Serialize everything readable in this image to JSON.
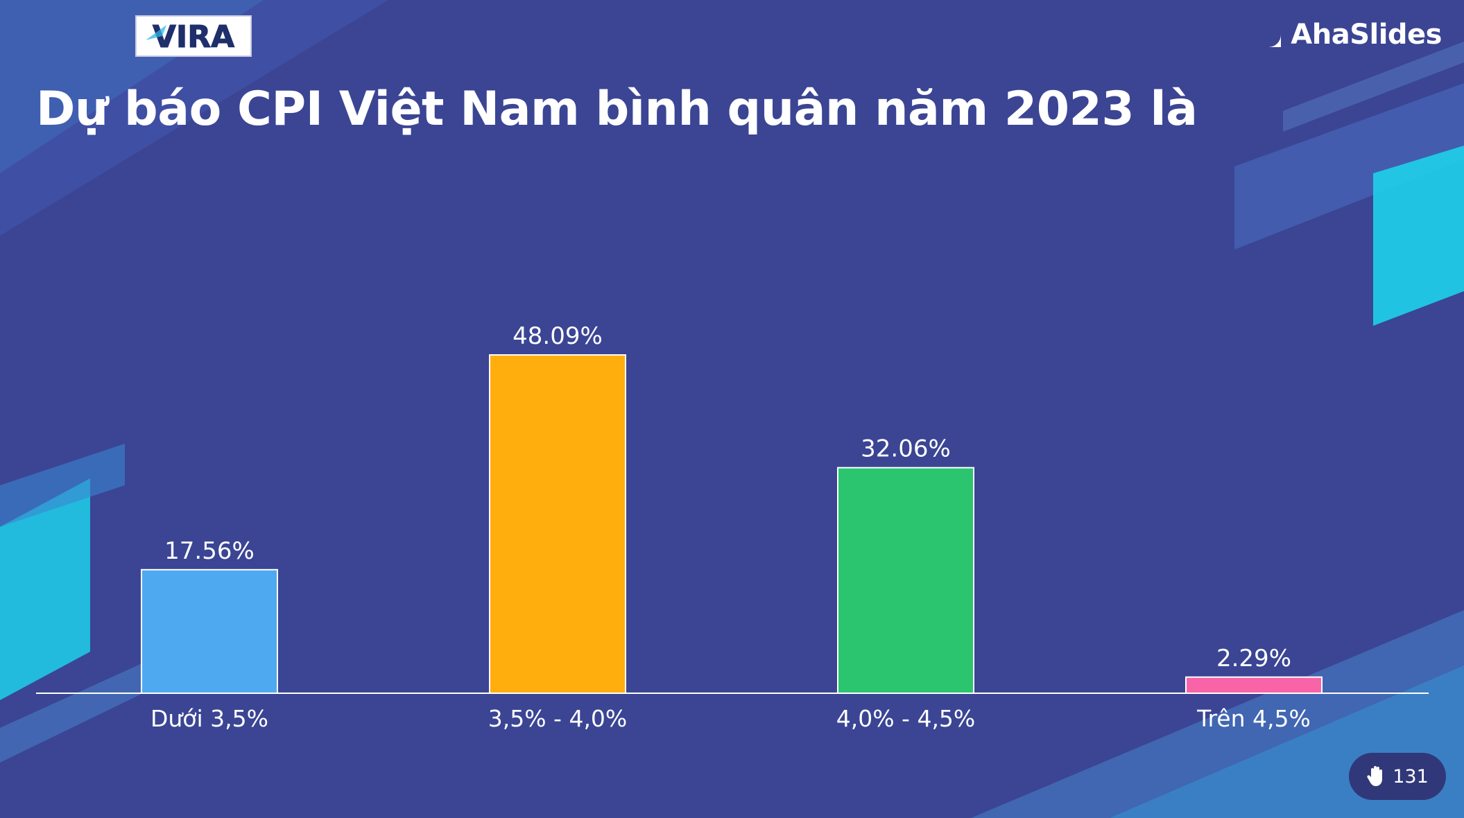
{
  "header": {
    "title": "Dự báo CPI Việt Nam bình quân năm 2023 là",
    "logo_text": "VIRA",
    "brand_name": "AhaSlides"
  },
  "footer": {
    "response_count": "131",
    "response_icon": "hand-icon"
  },
  "colors": {
    "background": "#3b4594",
    "accent_cyan": "#1fd0ea",
    "text": "#ffffff"
  },
  "chart_data": {
    "type": "bar",
    "title": "Dự báo CPI Việt Nam bình quân năm 2023 là",
    "categories": [
      "Dưới 3,5%",
      "3,5% - 4,0%",
      "4,0% - 4,5%",
      "Trên 4,5%"
    ],
    "values": [
      17.56,
      48.09,
      32.06,
      2.29
    ],
    "value_labels": [
      "17.56%",
      "48.09%",
      "32.06%",
      "2.29%"
    ],
    "colors": [
      "#4fa9f0",
      "#ffae0d",
      "#2bc46f",
      "#f963a7"
    ],
    "xlabel": "",
    "ylabel": "",
    "ylim": [
      0,
      48.09
    ],
    "grid": false,
    "legend": "none"
  }
}
